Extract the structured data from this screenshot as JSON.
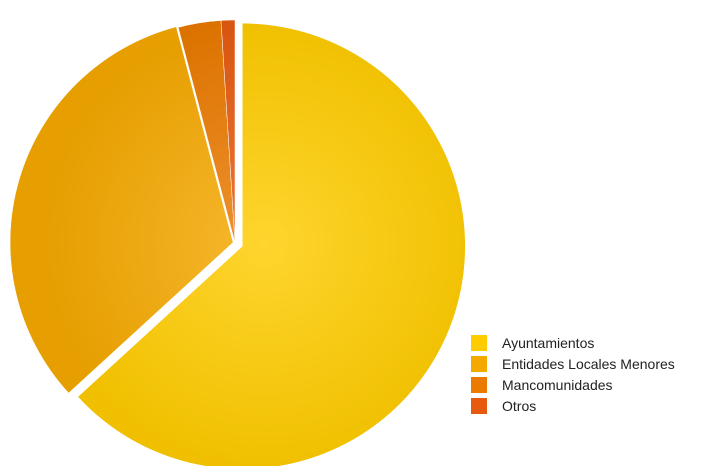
{
  "chart_data": {
    "type": "pie",
    "categories": [
      "Ayuntamientos",
      "Entidades Locales Menores",
      "Mancomunidades",
      "Otros"
    ],
    "values": [
      63.2,
      32.7,
      3.1,
      1.0
    ],
    "colors": [
      "#FFCC00",
      "#F5A800",
      "#EA7A00",
      "#E65A10"
    ],
    "legend_position": "bottom-right",
    "exploded": true
  }
}
